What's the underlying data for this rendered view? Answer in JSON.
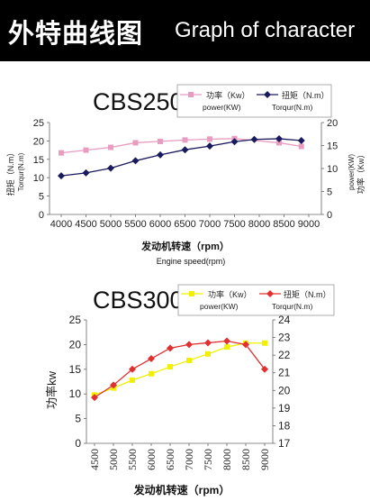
{
  "header": {
    "title_cn": "外特曲线图",
    "title_en": "Graph of character"
  },
  "chart_data": [
    {
      "type": "line",
      "title": "CBS250",
      "xlabel": "发动机转速（rpm）",
      "xlabel_en": "Engine speed(rpm)",
      "ylabel_left": "扭矩（N.m）",
      "ylabel_left_en": "Torqur(N.m)",
      "ylabel_right": "功率（Kw）",
      "ylabel_right_en": "power(KW)",
      "x": [
        4000,
        4500,
        5000,
        5500,
        6000,
        6500,
        7000,
        7500,
        8000,
        8500,
        9000
      ],
      "xticks": [
        "4000",
        "4500",
        "5000",
        "5500",
        "6000",
        "6500",
        "7000",
        "7500",
        "8000",
        "8500",
        "9000"
      ],
      "ylim_left": [
        0,
        25
      ],
      "yticks_left": [
        "0",
        "5",
        "10",
        "15",
        "20",
        "25"
      ],
      "ylim_right": [
        0,
        20
      ],
      "yticks_right": [
        "0",
        "5",
        "10",
        "15",
        "20"
      ],
      "legend_position": "top",
      "series": [
        {
          "name": "功率（Kw）",
          "name_en": "power(KW)",
          "axis": "right",
          "color": "#e89cc0",
          "marker": "square",
          "x": [
            4000,
            4500,
            5000,
            5500,
            6000,
            6500,
            7000,
            7500,
            8400,
            8850
          ],
          "values": [
            13.4,
            14.0,
            14.6,
            15.6,
            15.9,
            16.2,
            16.4,
            16.5,
            15.6,
            14.8
          ]
        },
        {
          "name": "扭矩（N.m）",
          "name_en": "Torqur(N.m)",
          "axis": "left",
          "color": "#1a1a5e",
          "marker": "diamond",
          "x": [
            4000,
            4500,
            5000,
            5500,
            6000,
            6500,
            7000,
            7500,
            7900,
            8400,
            8850
          ],
          "values": [
            10.5,
            11.3,
            12.6,
            14.6,
            16.2,
            17.6,
            18.6,
            19.8,
            20.4,
            20.6,
            20.1
          ]
        }
      ]
    },
    {
      "type": "line",
      "title": "CBS300",
      "xlabel": "发动机转速（rpm）",
      "ylabel_left": "功率kw",
      "x": [
        4500,
        5000,
        5500,
        6000,
        6500,
        7000,
        7500,
        8000,
        8500,
        9000
      ],
      "xticks": [
        "4500",
        "5000",
        "5500",
        "6000",
        "6500",
        "7000",
        "7500",
        "8000",
        "8500",
        "9000"
      ],
      "ylim_left": [
        0,
        25
      ],
      "yticks_left": [
        "0",
        "5",
        "10",
        "15",
        "20",
        "25"
      ],
      "ylim_right": [
        17,
        24
      ],
      "yticks_right": [
        "17",
        "18",
        "19",
        "20",
        "21",
        "22",
        "23",
        "24"
      ],
      "legend_position": "top",
      "series": [
        {
          "name": "功率（Kw）",
          "name_en": "power(KW)",
          "axis": "left",
          "color": "#f0f000",
          "marker": "square",
          "x": [
            4500,
            5000,
            5500,
            6000,
            6500,
            7000,
            7500,
            8000,
            8500,
            9000
          ],
          "values": [
            9.8,
            11.2,
            12.8,
            14.1,
            15.5,
            16.8,
            18.1,
            19.5,
            20.3,
            20.3
          ]
        },
        {
          "name": "扭矩（N.m）",
          "name_en": "Torqur(N.m)",
          "axis": "right",
          "color": "#e03030",
          "marker": "diamond",
          "x": [
            4500,
            5000,
            5500,
            6000,
            6500,
            7000,
            7500,
            8000,
            8500,
            9000
          ],
          "values": [
            19.6,
            20.3,
            21.2,
            21.8,
            22.4,
            22.6,
            22.7,
            22.8,
            22.6,
            21.2
          ]
        }
      ]
    }
  ]
}
